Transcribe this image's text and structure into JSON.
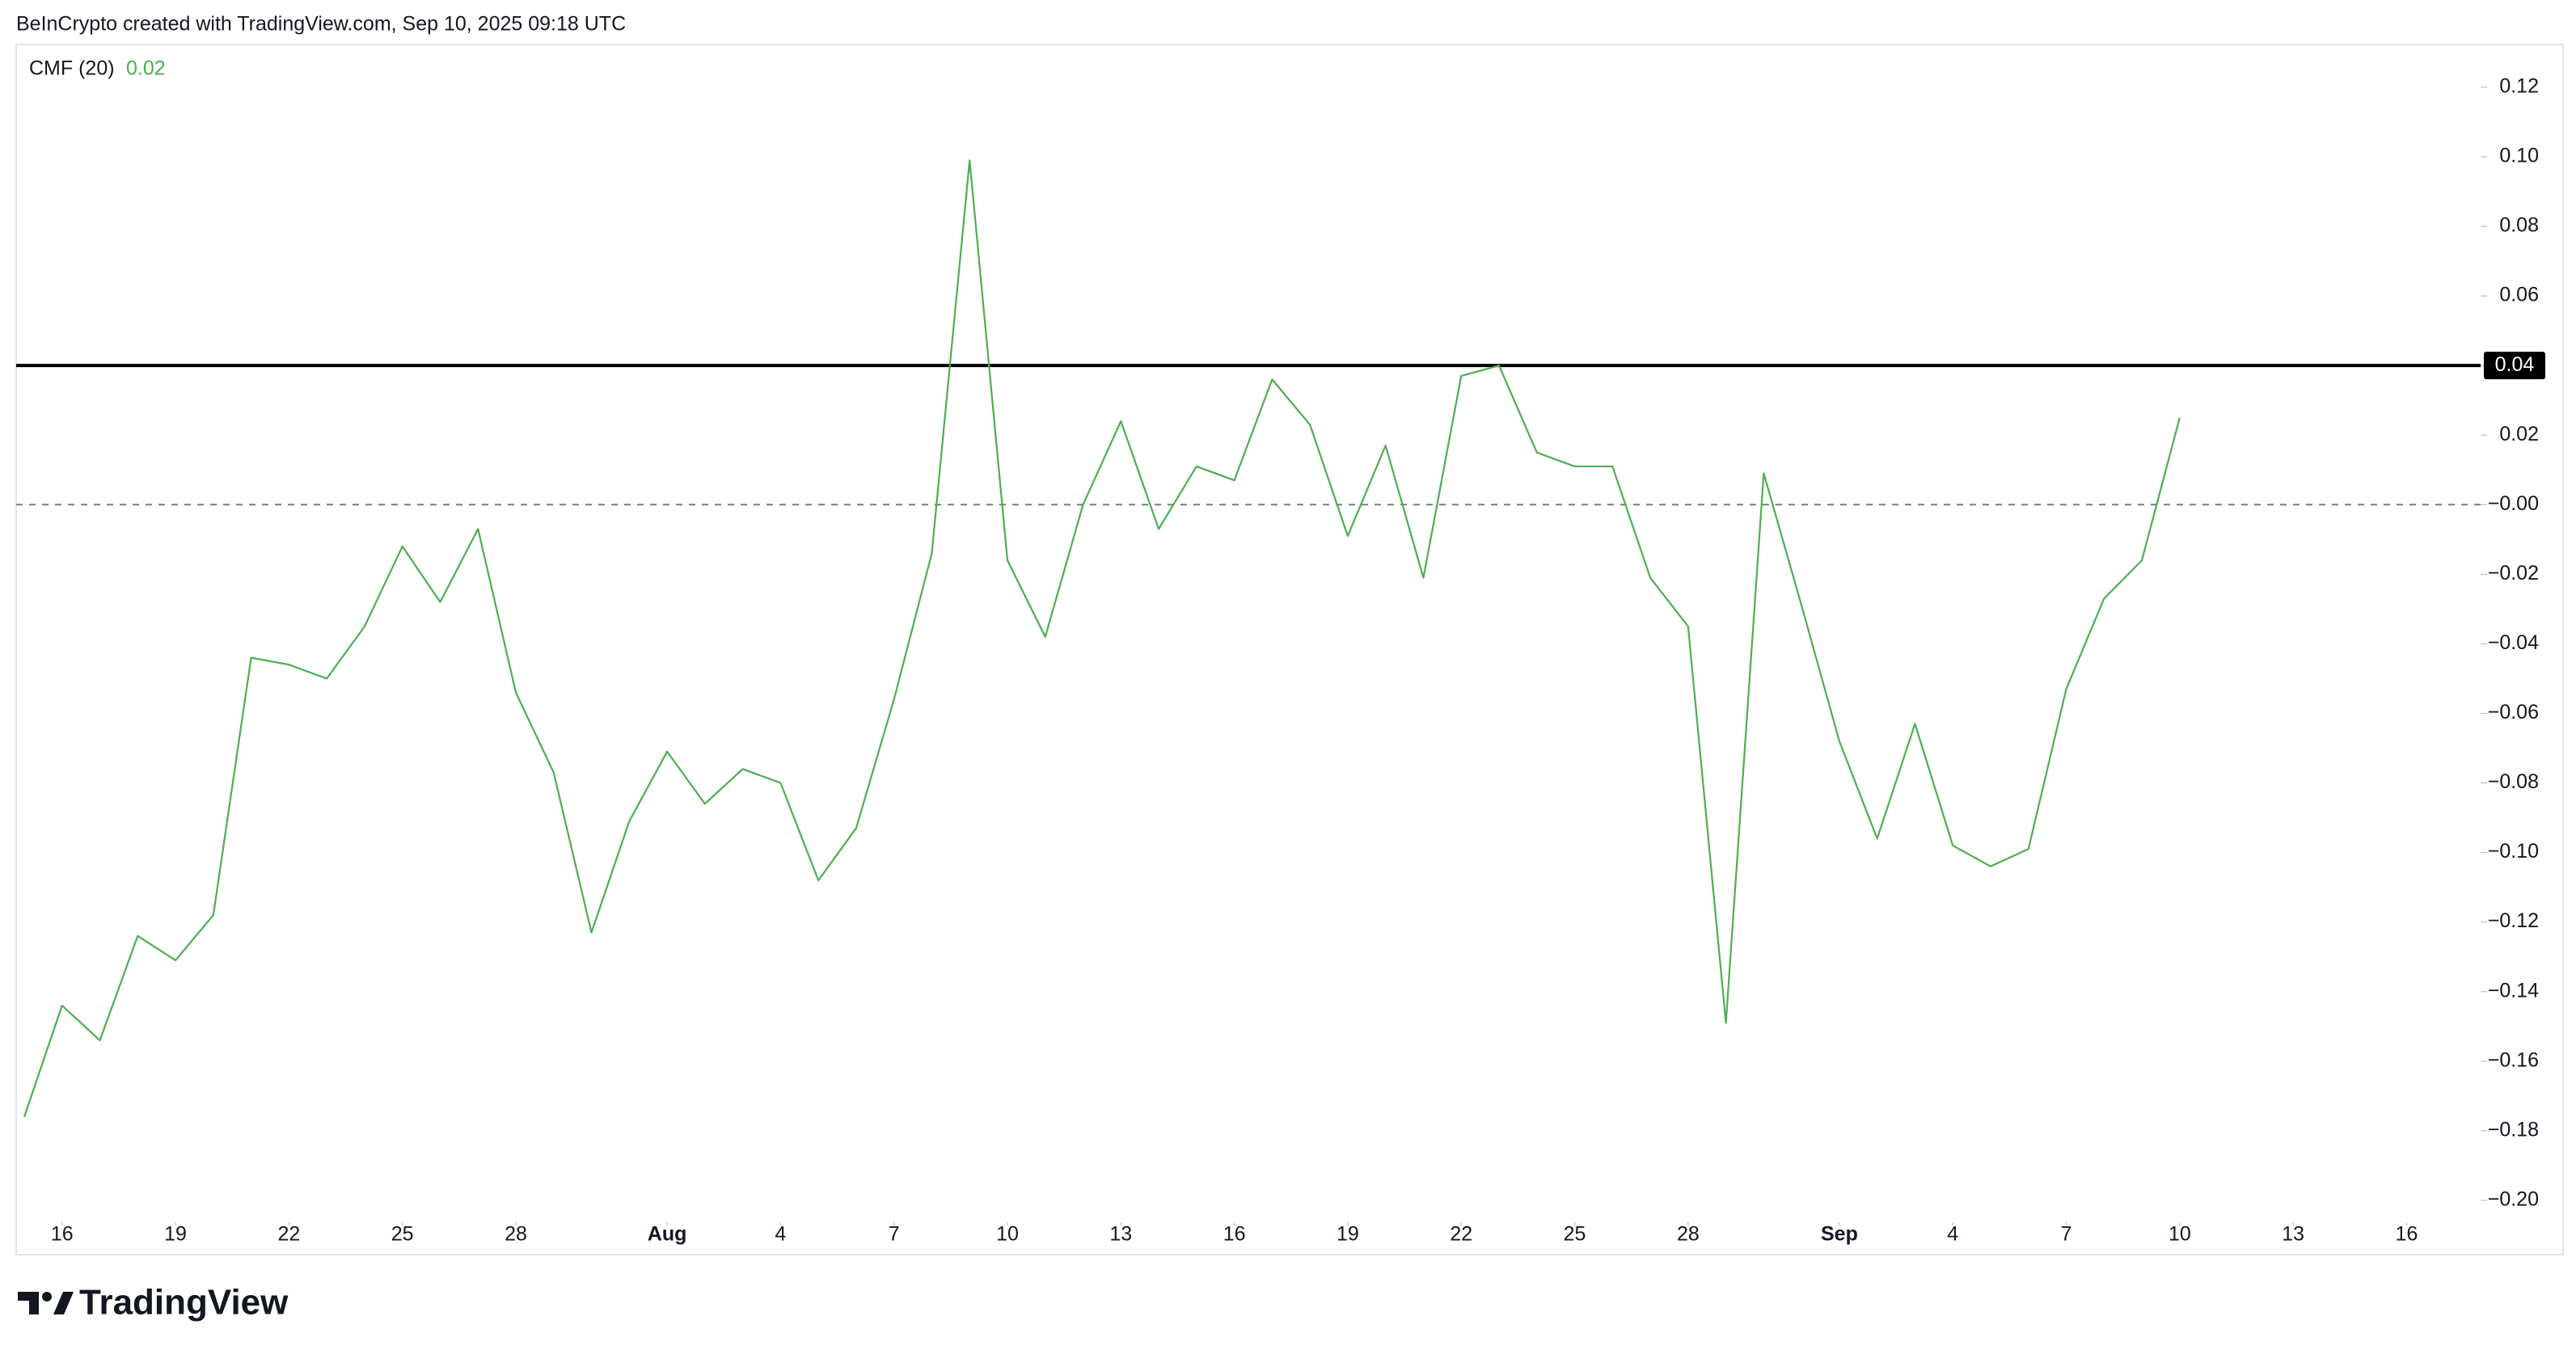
{
  "header": "BeInCrypto created with TradingView.com, Sep 10, 2025 09:18 UTC",
  "brand": "TradingView",
  "chart_data": {
    "type": "line",
    "legend_name": "CMF (20)",
    "last_value": 0.02,
    "x": [
      "07-15",
      "07-16",
      "07-17",
      "07-18",
      "07-19",
      "07-20",
      "07-21",
      "07-22",
      "07-23",
      "07-24",
      "07-25",
      "07-26",
      "07-27",
      "07-28",
      "07-29",
      "07-30",
      "07-31",
      "08-01",
      "08-02",
      "08-03",
      "08-04",
      "08-05",
      "08-06",
      "08-07",
      "08-08",
      "08-09",
      "08-10",
      "08-11",
      "08-12",
      "08-13",
      "08-14",
      "08-15",
      "08-16",
      "08-17",
      "08-18",
      "08-19",
      "08-20",
      "08-21",
      "08-22",
      "08-23",
      "08-24",
      "08-25",
      "08-26",
      "08-27",
      "08-28",
      "08-29",
      "08-30",
      "08-31",
      "09-01",
      "09-02",
      "09-03",
      "09-04",
      "09-05",
      "09-06",
      "09-07",
      "09-08",
      "09-09",
      "09-10"
    ],
    "series": [
      {
        "name": "CMF (20)",
        "color": "#4caf50",
        "values": [
          -0.176,
          -0.144,
          -0.154,
          -0.124,
          -0.131,
          -0.118,
          -0.044,
          -0.046,
          -0.05,
          -0.035,
          -0.012,
          -0.028,
          -0.007,
          -0.054,
          -0.077,
          -0.123,
          -0.091,
          -0.071,
          -0.086,
          -0.076,
          -0.08,
          -0.108,
          -0.093,
          -0.056,
          -0.014,
          0.099,
          -0.016,
          -0.038,
          0.0,
          0.024,
          -0.007,
          0.011,
          0.007,
          0.036,
          0.023,
          -0.009,
          0.017,
          -0.021,
          0.037,
          0.04,
          0.015,
          0.011,
          0.011,
          -0.021,
          -0.035,
          -0.149,
          0.009,
          -0.029,
          -0.068,
          -0.096,
          -0.063,
          -0.098,
          -0.104,
          -0.099,
          -0.053,
          -0.027,
          -0.016,
          0.025
        ]
      }
    ],
    "hline": 0.04,
    "baseline": 0,
    "xlim": [
      "07-15",
      "09-18"
    ],
    "xticks": [
      {
        "value": "07-16",
        "label": "16"
      },
      {
        "value": "07-19",
        "label": "19"
      },
      {
        "value": "07-22",
        "label": "22"
      },
      {
        "value": "07-25",
        "label": "25"
      },
      {
        "value": "07-28",
        "label": "28"
      },
      {
        "value": "08-01",
        "label": "Aug"
      },
      {
        "value": "08-04",
        "label": "4"
      },
      {
        "value": "08-07",
        "label": "7"
      },
      {
        "value": "08-10",
        "label": "10"
      },
      {
        "value": "08-13",
        "label": "13"
      },
      {
        "value": "08-16",
        "label": "16"
      },
      {
        "value": "08-19",
        "label": "19"
      },
      {
        "value": "08-22",
        "label": "22"
      },
      {
        "value": "08-25",
        "label": "25"
      },
      {
        "value": "08-28",
        "label": "28"
      },
      {
        "value": "09-01",
        "label": "Sep"
      },
      {
        "value": "09-04",
        "label": "4"
      },
      {
        "value": "09-07",
        "label": "7"
      },
      {
        "value": "09-10",
        "label": "10"
      },
      {
        "value": "09-13",
        "label": "13"
      },
      {
        "value": "09-16",
        "label": "16"
      }
    ],
    "ylim": [
      -0.2156,
      0.1323
    ],
    "yticks": [
      0.12,
      {
        "value": 0.1,
        "label": "0.10"
      },
      0.08,
      0.06,
      0.04,
      0.02,
      {
        "value": 0,
        "label": "−0.00"
      },
      {
        "value": -0.02,
        "label": "−0.02"
      },
      {
        "value": -0.04,
        "label": "−0.04"
      },
      {
        "value": -0.06,
        "label": "−0.06"
      },
      {
        "value": -0.08,
        "label": "−0.08"
      },
      {
        "value": -0.1,
        "label": "−0.10"
      },
      {
        "value": -0.12,
        "label": "−0.12"
      },
      {
        "value": -0.14,
        "label": "−0.14"
      },
      {
        "value": -0.16,
        "label": "−0.16"
      },
      {
        "value": -0.18,
        "label": "−0.18"
      },
      {
        "value": -0.2,
        "label": "−0.20"
      }
    ]
  }
}
